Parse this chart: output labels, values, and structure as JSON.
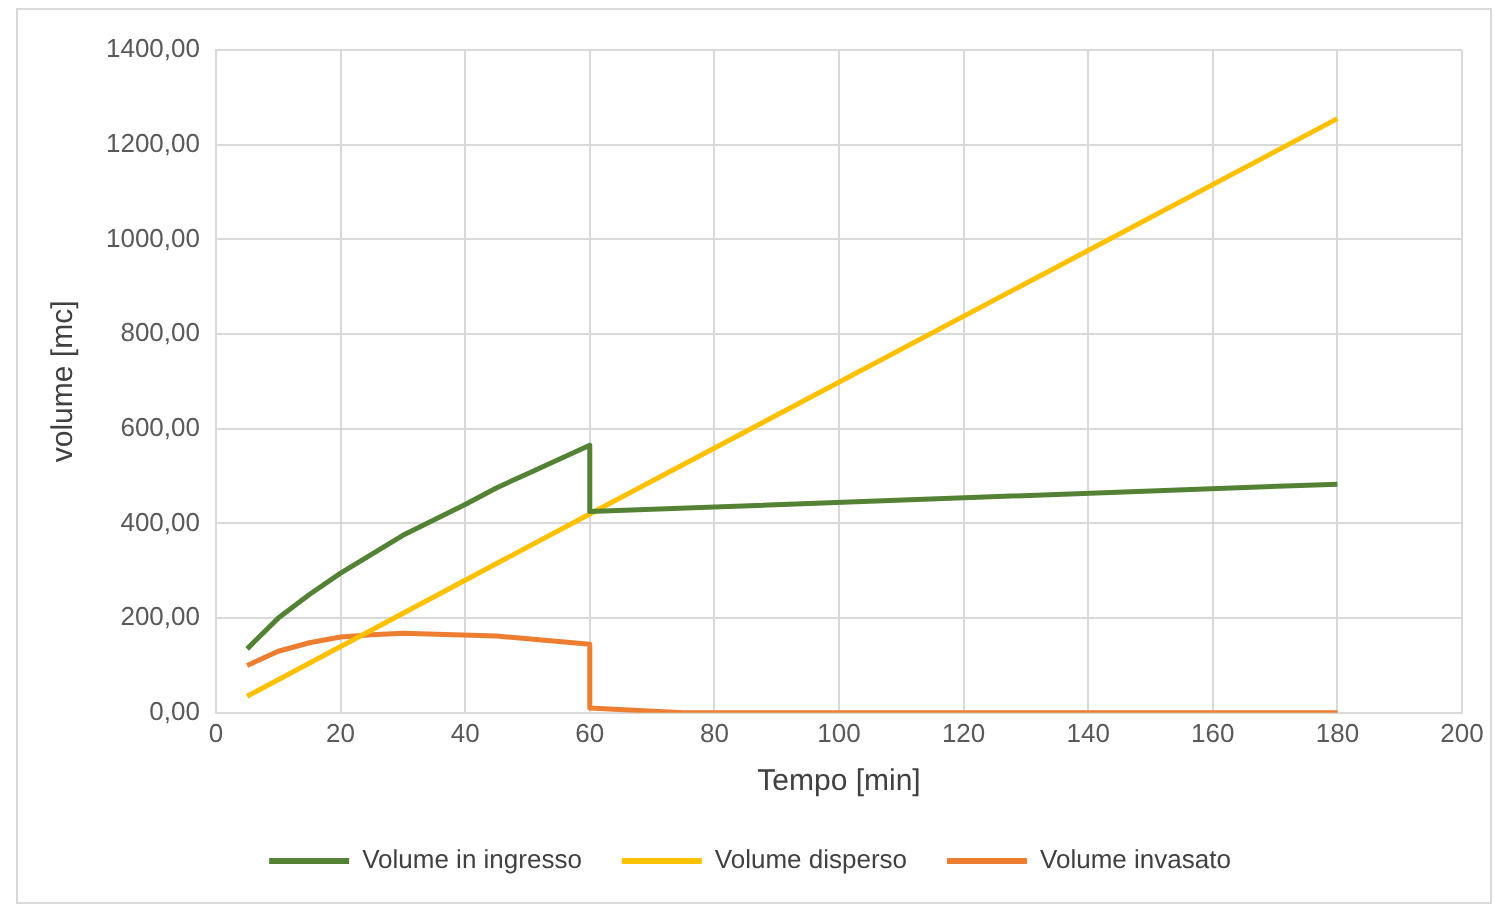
{
  "chart_data": {
    "type": "line",
    "xlabel": "Tempo [min]",
    "ylabel": "volume [mc]",
    "xlim": [
      0,
      200
    ],
    "xticks": [
      0,
      20,
      40,
      60,
      80,
      100,
      120,
      140,
      160,
      180,
      200
    ],
    "ylim": [
      0,
      1400
    ],
    "yticks": [
      {
        "value": 0,
        "label": "0,00"
      },
      {
        "value": 200,
        "label": "200,00"
      },
      {
        "value": 400,
        "label": "400,00"
      },
      {
        "value": 600,
        "label": "600,00"
      },
      {
        "value": 800,
        "label": "800,00"
      },
      {
        "value": 1000,
        "label": "1000,00"
      },
      {
        "value": 1200,
        "label": "1200,00"
      },
      {
        "value": 1400,
        "label": "1400,00"
      }
    ],
    "grid": true,
    "legend": "bottom",
    "marker": "none",
    "line_style": "solid",
    "series": [
      {
        "name": "Volume in ingresso",
        "color": "#548235",
        "x": [
          5,
          10,
          15,
          20,
          30,
          40,
          45,
          50,
          60,
          60,
          180
        ],
        "values": [
          135,
          200,
          250,
          295,
          375,
          440,
          475,
          505,
          565,
          425,
          483
        ]
      },
      {
        "name": "Volume disperso",
        "color": "#ffc000",
        "x": [
          5,
          60,
          180
        ],
        "values": [
          35,
          420,
          1255
        ]
      },
      {
        "name": "Volume invasato",
        "color": "#ed7d31",
        "x": [
          5,
          10,
          15,
          20,
          25,
          30,
          45,
          60,
          60,
          75,
          180
        ],
        "values": [
          100,
          130,
          148,
          160,
          165,
          168,
          162,
          145,
          10,
          0,
          0
        ]
      }
    ]
  }
}
